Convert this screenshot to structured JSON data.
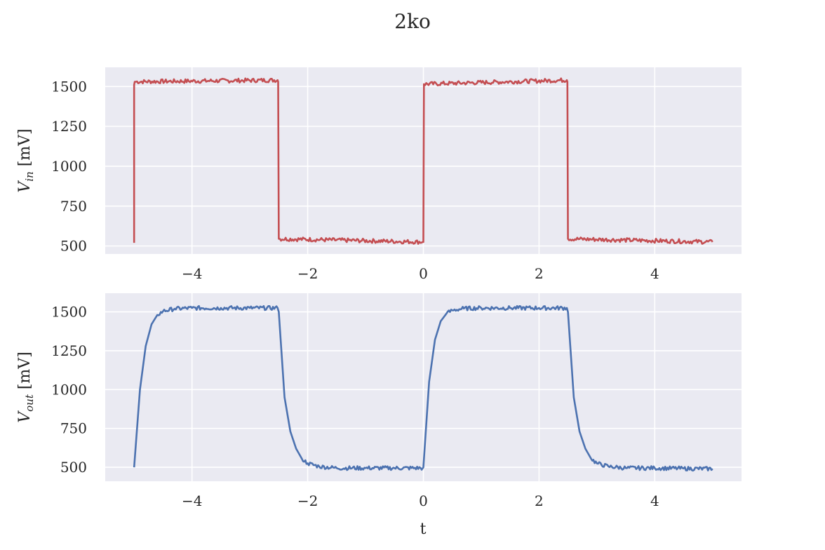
{
  "chart_data": [
    {
      "type": "line",
      "title": "2ko",
      "xlabel": "",
      "ylabel_base": "V",
      "ylabel_sub": "in",
      "ylabel_unit": " [mV]",
      "xlim": [
        -5.5,
        5.5
      ],
      "ylim": [
        450,
        1620
      ],
      "xticks": [
        -4,
        -2,
        0,
        2,
        4
      ],
      "xtick_labels": [
        "−4",
        "−2",
        "0",
        "2",
        "4"
      ],
      "yticks": [
        500,
        750,
        1000,
        1250,
        1500
      ],
      "ytick_labels": [
        "500",
        "750",
        "1000",
        "1250",
        "1500"
      ],
      "grid": true,
      "color": "#c44e52",
      "series": [
        {
          "x": [
            -5.0,
            -5.0,
            -4.99,
            -2.52,
            -2.51,
            -2.5,
            -0.01,
            0.0,
            0.01,
            2.48,
            2.49,
            2.5,
            5.0
          ],
          "y": [
            520,
            1510,
            1530,
            1540,
            1530,
            545,
            525,
            525,
            1515,
            1540,
            1530,
            545,
            525
          ]
        }
      ]
    },
    {
      "type": "line",
      "title": "",
      "xlabel": "t",
      "ylabel_base": "V",
      "ylabel_sub": "out",
      "ylabel_unit": " [mV]",
      "xlim": [
        -5.5,
        5.5
      ],
      "ylim": [
        410,
        1620
      ],
      "xticks": [
        -4,
        -2,
        0,
        2,
        4
      ],
      "xtick_labels": [
        "−4",
        "−2",
        "0",
        "2",
        "4"
      ],
      "yticks": [
        500,
        750,
        1000,
        1250,
        1500
      ],
      "ytick_labels": [
        "500",
        "750",
        "1000",
        "1250",
        "1500"
      ],
      "grid": true,
      "color": "#4c72b0",
      "series": [
        {
          "x": [
            -5.0,
            -4.9,
            -4.8,
            -4.7,
            -4.6,
            -4.5,
            -4.3,
            -4.0,
            -3.5,
            -3.0,
            -2.52,
            -2.5,
            -2.4,
            -2.3,
            -2.2,
            -2.1,
            -2.0,
            -1.8,
            -1.5,
            -1.0,
            -0.5,
            -0.01,
            0.0,
            0.1,
            0.2,
            0.3,
            0.4,
            0.5,
            0.7,
            1.0,
            1.5,
            2.0,
            2.48,
            2.5,
            2.6,
            2.7,
            2.8,
            2.9,
            3.0,
            3.2,
            3.5,
            4.0,
            4.5,
            5.0
          ],
          "y": [
            500,
            1000,
            1280,
            1420,
            1480,
            1505,
            1520,
            1525,
            1525,
            1525,
            1525,
            1500,
            950,
            730,
            620,
            555,
            525,
            505,
            495,
            495,
            495,
            495,
            500,
            1050,
            1320,
            1440,
            1490,
            1510,
            1522,
            1525,
            1525,
            1525,
            1525,
            1500,
            950,
            730,
            620,
            555,
            525,
            505,
            495,
            495,
            492,
            490
          ]
        }
      ]
    }
  ]
}
